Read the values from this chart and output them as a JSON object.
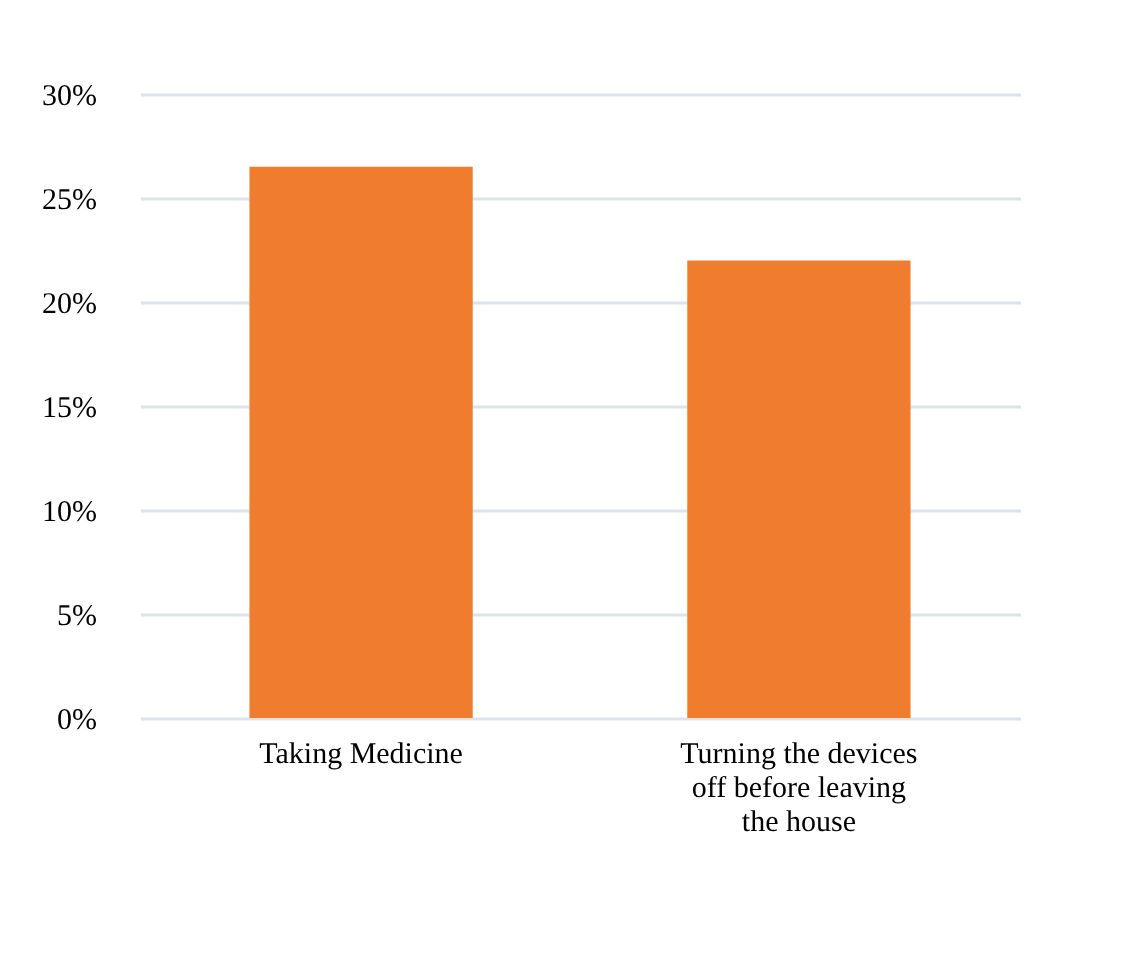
{
  "chart_data": {
    "type": "bar",
    "categories": [
      "Taking Medicine",
      "Turning the devices off before leaving the house"
    ],
    "values": [
      26.5,
      22
    ],
    "color": "#f07d2e",
    "ylim": [
      0,
      30
    ],
    "yticks": [
      {
        "value": 0,
        "label": "0%"
      },
      {
        "value": 5,
        "label": "5%"
      },
      {
        "value": 10,
        "label": "10%"
      },
      {
        "value": 15,
        "label": "15%"
      },
      {
        "value": 20,
        "label": "20%"
      },
      {
        "value": 25,
        "label": "25%"
      },
      {
        "value": 30,
        "label": "30%"
      }
    ],
    "grid": "y"
  }
}
